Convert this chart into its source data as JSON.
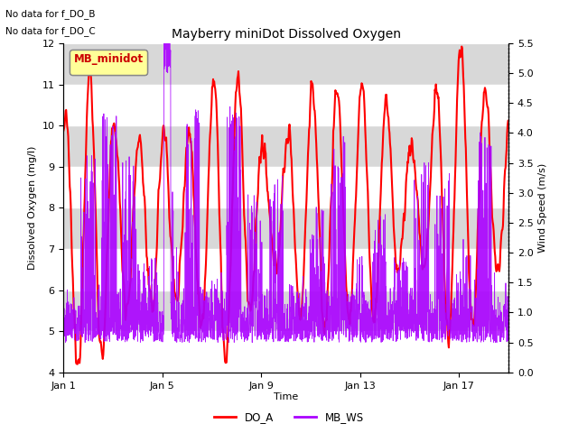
{
  "title": "Mayberry miniDot Dissolved Oxygen",
  "subtitle_lines": [
    "No data for f_DO_B",
    "No data for f_DO_C"
  ],
  "xlabel": "Time",
  "ylabel_left": "Dissolved Oxygen (mg/l)",
  "ylabel_right": "Wind Speed (m/s)",
  "ylim_left": [
    4.0,
    12.0
  ],
  "ylim_right": [
    0.0,
    5.5
  ],
  "yticks_left": [
    4.0,
    5.0,
    6.0,
    7.0,
    8.0,
    9.0,
    10.0,
    11.0,
    12.0
  ],
  "yticks_right": [
    0.0,
    0.5,
    1.0,
    1.5,
    2.0,
    2.5,
    3.0,
    3.5,
    4.0,
    4.5,
    5.0,
    5.5
  ],
  "xtick_labels": [
    "Jan 1",
    "Jan 5",
    "Jan 9",
    "Jan 13",
    "Jan 17"
  ],
  "xtick_positions": [
    0,
    4,
    8,
    12,
    16
  ],
  "xmax": 18,
  "do_color": "#ff0000",
  "ws_color": "#aa00ff",
  "do_linewidth": 1.5,
  "ws_linewidth": 0.6,
  "legend_box_color": "#ffff99",
  "legend_box_label": "MB_minidot",
  "legend_box_text_color": "#cc0000",
  "axes_bg_color": "#d8d8d8",
  "band_color": "#e8e8e8",
  "do_legend": "DO_A",
  "ws_legend": "MB_WS",
  "fig_bg_color": "#ffffff"
}
